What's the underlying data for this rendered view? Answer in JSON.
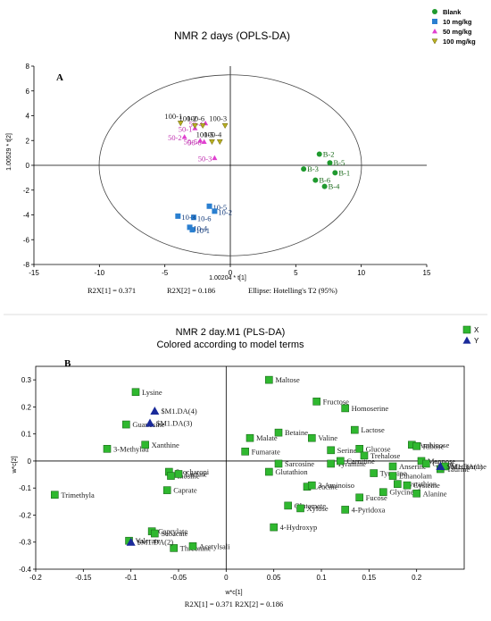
{
  "chart_data": [
    {
      "type": "scatter",
      "title": "NMR 2 days (OPLS-DA)",
      "panel_label": "A",
      "xlabel": "1.00204 * t[1]",
      "ylabel": "1.00529 * t[2]",
      "xlim": [
        -15,
        15
      ],
      "ylim": [
        -8,
        8
      ],
      "xticks": [
        -15,
        -10,
        -5,
        0,
        5,
        10,
        15
      ],
      "yticks": [
        -8,
        -6,
        -4,
        -2,
        0,
        2,
        4,
        6,
        8
      ],
      "ellipse_caption": "Ellipse: Hotelling's T2 (95%)",
      "stats": [
        "R2X[1] = 0.371",
        "R2X[2] = 0.186"
      ],
      "legend_placement": "top-right",
      "legend": [
        {
          "name": "Blank",
          "color": "#1f9a2e",
          "marker": "circle"
        },
        {
          "name": "10 mg/kg",
          "color": "#2a7fd0",
          "marker": "square"
        },
        {
          "name": "50 mg/kg",
          "color": "#e040d0",
          "marker": "triangle"
        },
        {
          "name": "100 mg/kg",
          "color": "#b8b020",
          "marker": "triangle-down"
        }
      ],
      "series": [
        {
          "name": "Blank",
          "color": "#1f9a2e",
          "marker": "circle",
          "points": [
            {
              "label": "B-2",
              "x": 6.8,
              "y": 0.9
            },
            {
              "label": "B-5",
              "x": 7.6,
              "y": 0.2
            },
            {
              "label": "B-3",
              "x": 5.6,
              "y": -0.3
            },
            {
              "label": "B-1",
              "x": 8.0,
              "y": -0.6
            },
            {
              "label": "B-6",
              "x": 6.5,
              "y": -1.2
            },
            {
              "label": "B-4",
              "x": 7.2,
              "y": -1.7
            }
          ]
        },
        {
          "name": "10 mg/kg",
          "color": "#2a7fd0",
          "marker": "square",
          "points": [
            {
              "label": "10-5",
              "x": -1.6,
              "y": -3.3
            },
            {
              "label": "10-2",
              "x": -1.2,
              "y": -3.7
            },
            {
              "label": "10-6",
              "x": -2.8,
              "y": -4.2
            },
            {
              "label": "10-3",
              "x": -4.0,
              "y": -4.1
            },
            {
              "label": "10-4",
              "x": -3.1,
              "y": -5.0
            },
            {
              "label": "10-1",
              "x": -2.9,
              "y": -5.2
            }
          ]
        },
        {
          "name": "50 mg/kg",
          "color": "#e040d0",
          "marker": "triangle",
          "points": [
            {
              "label": "50-4",
              "x": -1.9,
              "y": 3.4
            },
            {
              "label": "50-2",
              "x": -3.5,
              "y": 2.3
            },
            {
              "label": "50-5",
              "x": -2.3,
              "y": 2.0
            },
            {
              "label": "50-6",
              "x": -2.0,
              "y": 1.9
            },
            {
              "label": "50-3",
              "x": -1.2,
              "y": 0.6
            },
            {
              "label": "50-1",
              "x": -2.7,
              "y": 3.0
            }
          ]
        },
        {
          "name": "100 mg/kg",
          "color": "#b8b020",
          "marker": "triangle-down",
          "points": [
            {
              "label": "100-1",
              "x": -3.8,
              "y": 3.4
            },
            {
              "label": "100-6",
              "x": -2.1,
              "y": 3.2
            },
            {
              "label": "100-3",
              "x": -0.4,
              "y": 3.2
            },
            {
              "label": "100-2",
              "x": -2.7,
              "y": 3.2
            },
            {
              "label": "100-5",
              "x": -1.4,
              "y": 1.9
            },
            {
              "label": "100-4",
              "x": -0.8,
              "y": 1.9
            }
          ]
        }
      ]
    },
    {
      "type": "scatter",
      "title": "NMR 2 day.M1 (PLS-DA)",
      "subtitle": "Colored according to model terms",
      "panel_label": "B",
      "xlabel": "w*c[1]",
      "ylabel": "w*c[2]",
      "xlim": [
        -0.2,
        0.25
      ],
      "ylim": [
        -0.4,
        0.35
      ],
      "xticks": [
        -0.2,
        -0.15,
        -0.1,
        -0.05,
        0,
        0.05,
        0.1,
        0.15,
        0.2
      ],
      "yticks": [
        -0.4,
        -0.3,
        -0.2,
        -0.1,
        0,
        0.1,
        0.2,
        0.3
      ],
      "footer": "R2X[1] = 0.371 R2X[2] = 0.186",
      "legend_placement": "top-right",
      "legend": [
        {
          "name": "X",
          "color": "#2fb82f",
          "marker": "square"
        },
        {
          "name": "Y",
          "color": "#1a2a9a",
          "marker": "triangle"
        }
      ],
      "x_vars": [
        {
          "label": "Lysine",
          "x": -0.095,
          "y": 0.255
        },
        {
          "label": "Guanosine",
          "x": -0.105,
          "y": 0.135
        },
        {
          "label": "3-Methylad",
          "x": -0.125,
          "y": 0.045
        },
        {
          "label": "Xanthine",
          "x": -0.085,
          "y": 0.06
        },
        {
          "label": "Trimethyla",
          "x": -0.18,
          "y": -0.125
        },
        {
          "label": "Saccharopi",
          "x": -0.06,
          "y": -0.04
        },
        {
          "label": "Inosine",
          "x": -0.058,
          "y": -0.055
        },
        {
          "label": "Lactate",
          "x": -0.05,
          "y": -0.048
        },
        {
          "label": "Caprate",
          "x": -0.062,
          "y": -0.108
        },
        {
          "label": "Caprylate",
          "x": -0.078,
          "y": -0.26
        },
        {
          "label": "Sebacate",
          "x": -0.075,
          "y": -0.268
        },
        {
          "label": "Valerate",
          "x": -0.102,
          "y": -0.295
        },
        {
          "label": "Threonine",
          "x": -0.055,
          "y": -0.322
        },
        {
          "label": "Acetylsali",
          "x": -0.035,
          "y": -0.315
        },
        {
          "label": "Maltose",
          "x": 0.045,
          "y": 0.3
        },
        {
          "label": "Fructose",
          "x": 0.095,
          "y": 0.22
        },
        {
          "label": "Homoserine",
          "x": 0.125,
          "y": 0.195
        },
        {
          "label": "Lactose",
          "x": 0.135,
          "y": 0.115
        },
        {
          "label": "Malate",
          "x": 0.025,
          "y": 0.085
        },
        {
          "label": "Betaine",
          "x": 0.055,
          "y": 0.105
        },
        {
          "label": "Valine",
          "x": 0.09,
          "y": 0.085
        },
        {
          "label": "Fumarate",
          "x": 0.02,
          "y": 0.035
        },
        {
          "label": "Serine",
          "x": 0.11,
          "y": 0.04
        },
        {
          "label": "Glutathion",
          "x": 0.045,
          "y": -0.04
        },
        {
          "label": "Sarcosine",
          "x": 0.055,
          "y": -0.01
        },
        {
          "label": "Tyramine",
          "x": 0.11,
          "y": -0.01
        },
        {
          "label": "Carnitine",
          "x": 0.12,
          "y": 0.0
        },
        {
          "label": "Glucose",
          "x": 0.14,
          "y": 0.045
        },
        {
          "label": "Trehalose",
          "x": 0.145,
          "y": 0.02
        },
        {
          "label": "Arabinose",
          "x": 0.195,
          "y": 0.06
        },
        {
          "label": "Ribose",
          "x": 0.2,
          "y": 0.055
        },
        {
          "label": "Mannose",
          "x": 0.205,
          "y": 0.0
        },
        {
          "label": "Anserine",
          "x": 0.175,
          "y": -0.02
        },
        {
          "label": "Tyrosine",
          "x": 0.155,
          "y": -0.045
        },
        {
          "label": "Ethanolam",
          "x": 0.175,
          "y": -0.055
        },
        {
          "label": "Cystathion",
          "x": 0.18,
          "y": -0.085
        },
        {
          "label": "Cysteine",
          "x": 0.19,
          "y": -0.09
        },
        {
          "label": "Glycine",
          "x": 0.165,
          "y": -0.115
        },
        {
          "label": "Alanine",
          "x": 0.2,
          "y": -0.12
        },
        {
          "label": "Fucose",
          "x": 0.14,
          "y": -0.135
        },
        {
          "label": "Leucine",
          "x": 0.085,
          "y": -0.095
        },
        {
          "label": "3-Aminoiso",
          "x": 0.09,
          "y": -0.09
        },
        {
          "label": "Glutamate",
          "x": 0.065,
          "y": -0.165
        },
        {
          "label": "Xylose",
          "x": 0.078,
          "y": -0.175
        },
        {
          "label": "4-Pyridoxa",
          "x": 0.125,
          "y": -0.18
        },
        {
          "label": "4-Hydroxyp",
          "x": 0.05,
          "y": -0.245
        },
        {
          "label": "Citrate",
          "x": 0.21,
          "y": -0.01
        },
        {
          "label": "Taurine",
          "x": 0.225,
          "y": -0.03
        },
        {
          "label": "Methionine",
          "x": 0.23,
          "y": -0.02
        }
      ],
      "y_vars": [
        {
          "label": "$M1.DA(4)",
          "x": -0.075,
          "y": 0.185
        },
        {
          "label": "$M1.DA(3)",
          "x": -0.08,
          "y": 0.14
        },
        {
          "label": "$M1.DA(2)",
          "x": -0.1,
          "y": -0.3
        },
        {
          "label": "$M1.DA(1)",
          "x": 0.225,
          "y": -0.02
        }
      ]
    }
  ]
}
